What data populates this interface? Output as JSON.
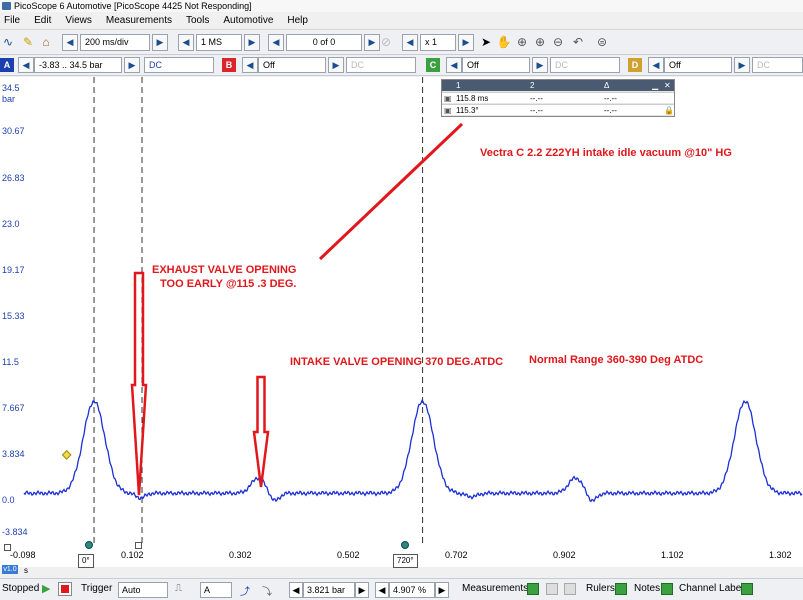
{
  "window": {
    "title": "PicoScope 6 Automotive [PicoScope 4425 Not Responding]"
  },
  "menu": [
    "File",
    "Edit",
    "Views",
    "Measurements",
    "Tools",
    "Automotive",
    "Help"
  ],
  "toolbar": {
    "timebase": "200 ms/div",
    "samples": "1 MS",
    "capture_count": "0 of 0",
    "zoom": "x 1"
  },
  "channels": [
    {
      "letter": "A",
      "range": "-3.83 .. 34.5 bar",
      "coupling": "DC",
      "color": "#1c3fb0"
    },
    {
      "letter": "B",
      "range": "Off",
      "coupling": "DC",
      "color": "#d9262b"
    },
    {
      "letter": "C",
      "range": "Off",
      "coupling": "DC",
      "color": "#3aa040"
    },
    {
      "letter": "D",
      "range": "Off",
      "coupling": "DC",
      "color": "#d0a030"
    }
  ],
  "plot": {
    "y_unit": "bar",
    "x_unit": "s",
    "version_badge": "v1.0",
    "y_ticks": [
      "34.5",
      "30.67",
      "26.83",
      "23.0",
      "19.17",
      "15.33",
      "11.5",
      "7.667",
      "3.834",
      "0.0",
      "-3.834"
    ],
    "x_ticks": [
      "-0.098",
      "0.102",
      "0.302",
      "0.502",
      "0.702",
      "0.902",
      "1.102",
      "1.302"
    ],
    "trace_color": "#1c2fd4",
    "rulers": [
      {
        "x_value": 0.03,
        "tag": "0°"
      },
      {
        "x_value": 0.1177,
        "tag": ""
      },
      {
        "x_value": 0.6305,
        "tag": "720°"
      }
    ]
  },
  "ruler_table": {
    "headers": [
      "1",
      "2",
      "Δ"
    ],
    "rows": [
      [
        "115.8 ms",
        "--.--",
        "--.--"
      ],
      [
        "115.3°",
        "--.--",
        "--.--"
      ]
    ]
  },
  "annotations": {
    "title": "Vectra C 2.2   Z22YH intake idle vacuum @10\" HG",
    "exhaust_line1": "EXHAUST VALVE OPENING",
    "exhaust_line2": "TOO EARLY @115 .3 DEG.",
    "intake": "INTAKE VALVE OPENING 370 DEG.ATDC",
    "normal_range": "Normal Range 360-390 Deg ATDC"
  },
  "status": {
    "state": "Stopped",
    "trigger_label": "Trigger",
    "trigger_mode": "Auto",
    "trigger_channel": "A",
    "trigger_level": "3.821 bar",
    "pre_trigger": "4.907 %",
    "measurements": "Measurements",
    "rulers": "Rulers",
    "notes": "Notes",
    "channel_labels": "Channel Labels"
  }
}
